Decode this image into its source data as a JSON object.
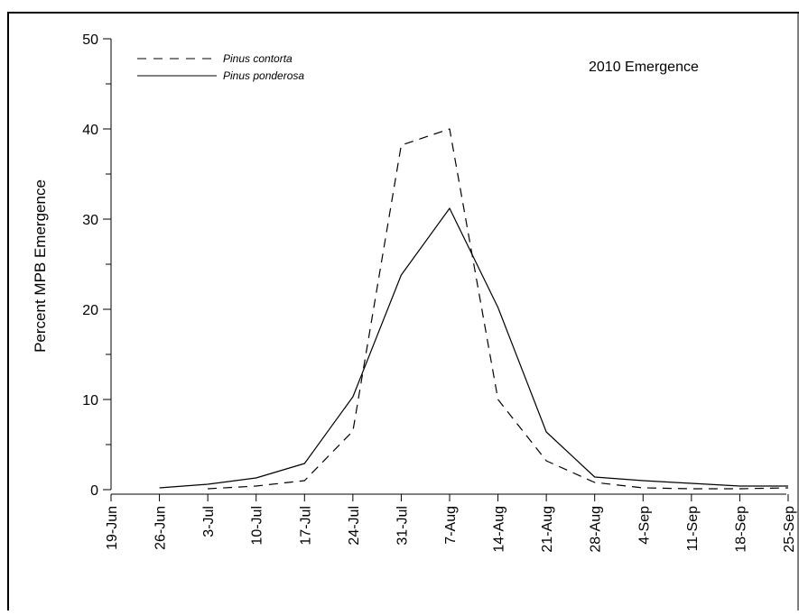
{
  "chart_data": {
    "type": "line",
    "title": "2010 Emergence",
    "ylabel": "Percent MPB Emergence",
    "xlabel": "",
    "categories": [
      "19-Jun",
      "26-Jun",
      "3-Jul",
      "10-Jul",
      "17-Jul",
      "24-Jul",
      "31-Jul",
      "7-Aug",
      "14-Aug",
      "21-Aug",
      "28-Aug",
      "4-Sep",
      "11-Sep",
      "18-Sep",
      "25-Sep"
    ],
    "ylim": [
      0,
      50
    ],
    "yticks": [
      0,
      10,
      20,
      30,
      40,
      50
    ],
    "grid": false,
    "legend_position": "top-left",
    "series": [
      {
        "name": "Pinus contorta",
        "style": "dashed",
        "values": [
          null,
          null,
          0.1,
          0.4,
          1.0,
          6.5,
          38.2,
          40.0,
          10.0,
          3.2,
          0.8,
          0.2,
          0.1,
          0.1,
          0.2
        ]
      },
      {
        "name": "Pinus ponderosa",
        "style": "solid",
        "values": [
          null,
          0.2,
          0.6,
          1.3,
          2.9,
          10.3,
          23.8,
          31.2,
          20.2,
          6.4,
          1.4,
          1.0,
          0.7,
          0.4,
          0.4
        ]
      }
    ]
  }
}
